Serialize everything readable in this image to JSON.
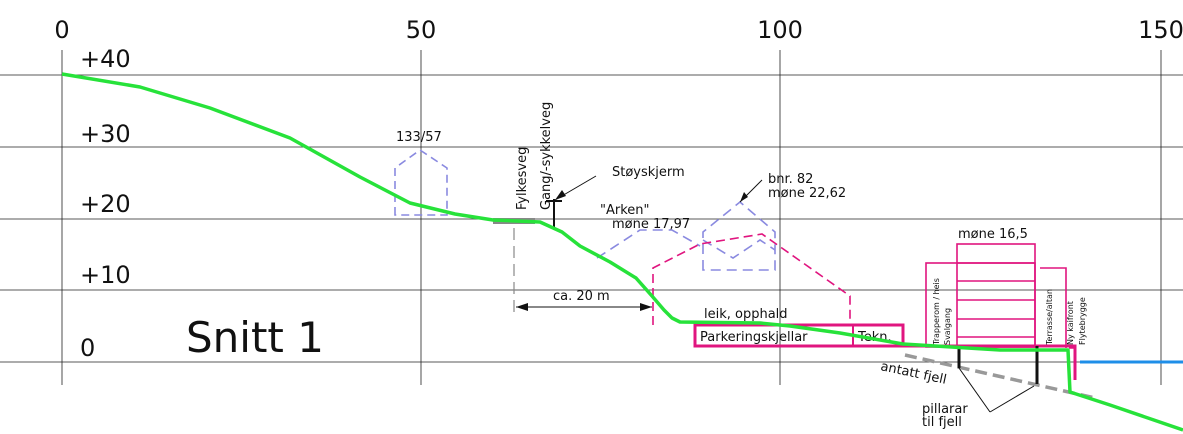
{
  "scale_x": {
    "ticks": [
      "0",
      "50",
      "100",
      "150"
    ]
  },
  "scale_y": {
    "ticks": [
      "+40",
      "+30",
      "+20",
      "+10",
      "0"
    ]
  },
  "title": "Snitt 1",
  "labels": {
    "plot_133_57": "133/57",
    "fylkesveg": "Fylkesveg",
    "gang_sykkelveg": "Gang/-sykkelveg",
    "stoyskjerm": "Støyskjerm",
    "arken": "\"Arken\"",
    "mone_arken": "møne 17,97",
    "bnr": "bnr. 82",
    "mone_bnr": "møne 22,62",
    "mone_new": "møne 16,5",
    "distance": "ca. 20 m",
    "leik": "leik, opphald",
    "parkering": "Parkeringskjellar",
    "tekn": "Tekn.",
    "trapperom": "Trapperom / heis",
    "svalgang": "Svalgang",
    "terrasse": "Terrasse/altan",
    "ny_kaifront": "Ny kaifront",
    "flytebrygge": "Flytebrygge",
    "antatt_fjell": "antatt fjell",
    "pillarar": "pillarar",
    "til_fjell": "til fjell"
  },
  "colors": {
    "terrain": "#27e23a",
    "building_new": "#e0157f",
    "building_existing": "#8a8ae0",
    "water": "#1e8ee8",
    "road": "#888888",
    "bedrock": "#999999"
  }
}
